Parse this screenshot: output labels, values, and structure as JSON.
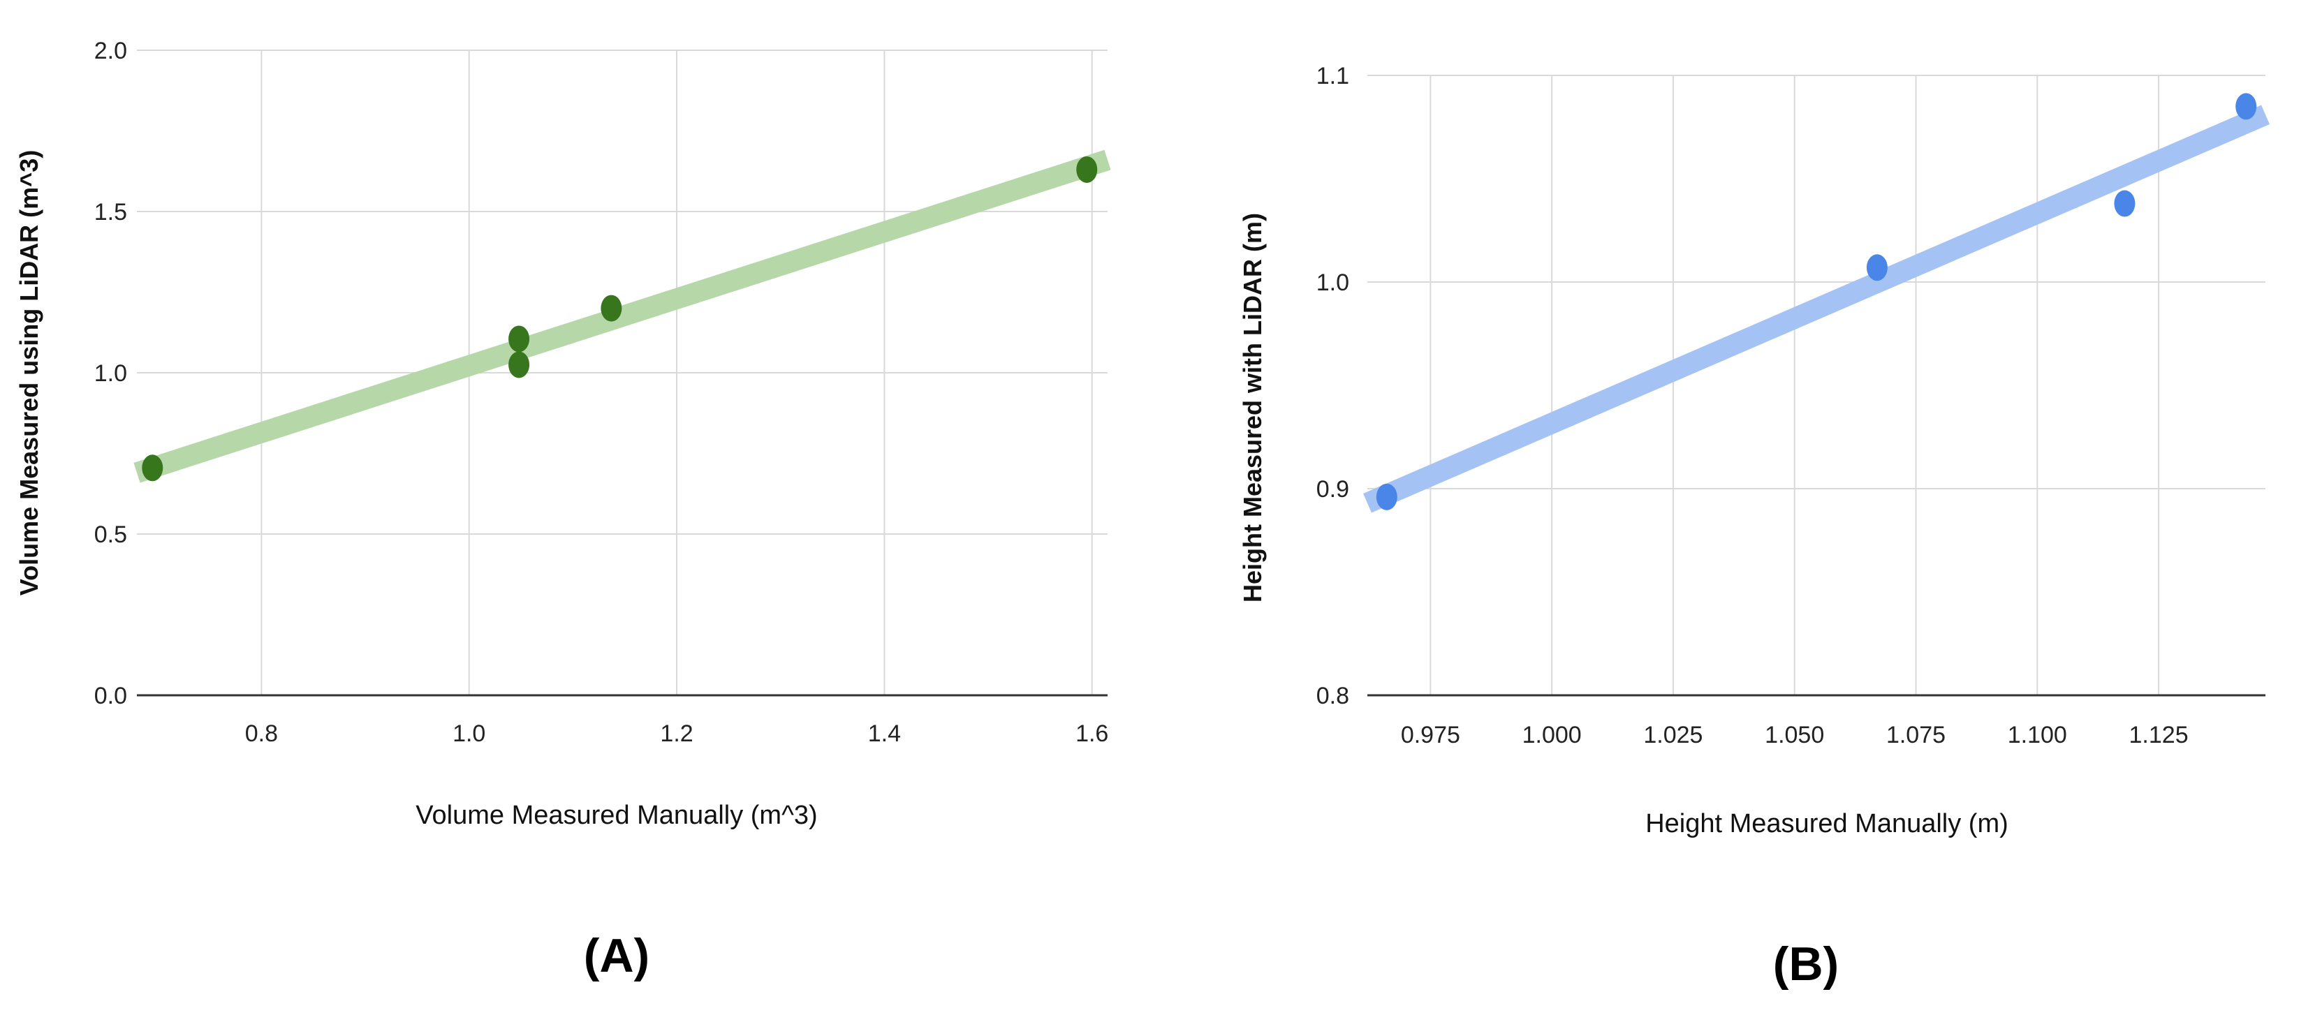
{
  "chart_data": [
    {
      "type": "scatter",
      "panel_label": "(A)",
      "title": "",
      "xlabel": "Volume Measured Manually (m^3)",
      "ylabel": "Volume Measured using LiDAR (m^3)",
      "xlim": [
        0.68,
        1.615
      ],
      "ylim": [
        0.0,
        2.0
      ],
      "xticks": [
        0.8,
        1.0,
        1.2,
        1.4,
        1.6
      ],
      "yticks": [
        0.0,
        0.5,
        1.0,
        1.5,
        2.0
      ],
      "xtick_labels": [
        "0.8",
        "1.0",
        "1.2",
        "1.4",
        "1.6"
      ],
      "ytick_labels": [
        "0.0",
        "0.5",
        "1.0",
        "1.5",
        "2.0"
      ],
      "grid": true,
      "point_color": "#38761d",
      "trendline_color": "#b6d7a8",
      "trendline": {
        "x": [
          0.68,
          1.615
        ],
        "y": [
          0.69,
          1.66
        ]
      },
      "series": [
        {
          "x": [
            0.695,
            1.048,
            1.048,
            1.137,
            1.595
          ],
          "y": [
            0.705,
            1.105,
            1.025,
            1.2,
            1.63
          ]
        }
      ]
    },
    {
      "type": "scatter",
      "panel_label": "(B)",
      "title": "",
      "xlabel": "Height Measured Manually (m)",
      "ylabel": "Height Measured with LiDAR (m)",
      "xlim": [
        0.962,
        1.147
      ],
      "ylim": [
        0.8,
        1.1
      ],
      "xticks": [
        0.975,
        1.0,
        1.025,
        1.05,
        1.075,
        1.1,
        1.125
      ],
      "yticks": [
        0.8,
        0.9,
        1.0,
        1.1
      ],
      "xtick_labels": [
        "0.975",
        "1.000",
        "1.025",
        "1.050",
        "1.075",
        "1.100",
        "1.125"
      ],
      "ytick_labels": [
        "0.8",
        "0.9",
        "1.0",
        "1.1"
      ],
      "grid": true,
      "point_color": "#4a86e8",
      "trendline_color": "#a4c2f4",
      "trendline": {
        "x": [
          0.962,
          1.147
        ],
        "y": [
          0.893,
          1.081
        ]
      },
      "series": [
        {
          "x": [
            0.966,
            1.067,
            1.118,
            1.143
          ],
          "y": [
            0.896,
            1.007,
            1.038,
            1.085
          ]
        }
      ]
    }
  ]
}
